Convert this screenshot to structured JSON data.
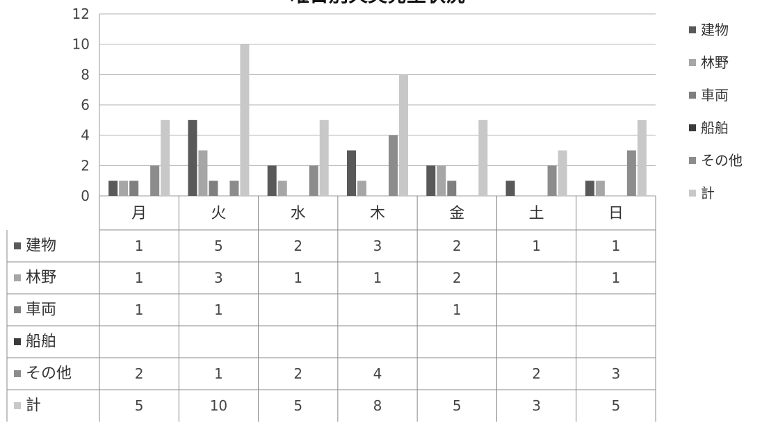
{
  "chart_data": {
    "type": "bar",
    "title": "曜日別火災発生状況",
    "categories": [
      "月",
      "火",
      "水",
      "木",
      "金",
      "土",
      "日"
    ],
    "ylim": [
      0,
      12
    ],
    "yticks": [
      0,
      2,
      4,
      6,
      8,
      10,
      12
    ],
    "grid": true,
    "legend_position": "right",
    "data_table": true,
    "series": [
      {
        "name": "建物",
        "color": "#595959",
        "values": [
          1,
          5,
          2,
          3,
          2,
          1,
          1
        ]
      },
      {
        "name": "林野",
        "color": "#a6a6a6",
        "values": [
          1,
          3,
          1,
          1,
          2,
          null,
          1
        ]
      },
      {
        "name": "車両",
        "color": "#7f7f7f",
        "values": [
          1,
          1,
          null,
          null,
          1,
          null,
          null
        ]
      },
      {
        "name": "船舶",
        "color": "#3a3a3a",
        "values": [
          null,
          null,
          null,
          null,
          null,
          null,
          null
        ]
      },
      {
        "name": "その他",
        "color": "#8c8c8c",
        "values": [
          2,
          1,
          2,
          4,
          null,
          2,
          3
        ]
      },
      {
        "name": "計",
        "color": "#c8c8c8",
        "values": [
          5,
          10,
          5,
          8,
          5,
          3,
          5
        ]
      }
    ]
  }
}
